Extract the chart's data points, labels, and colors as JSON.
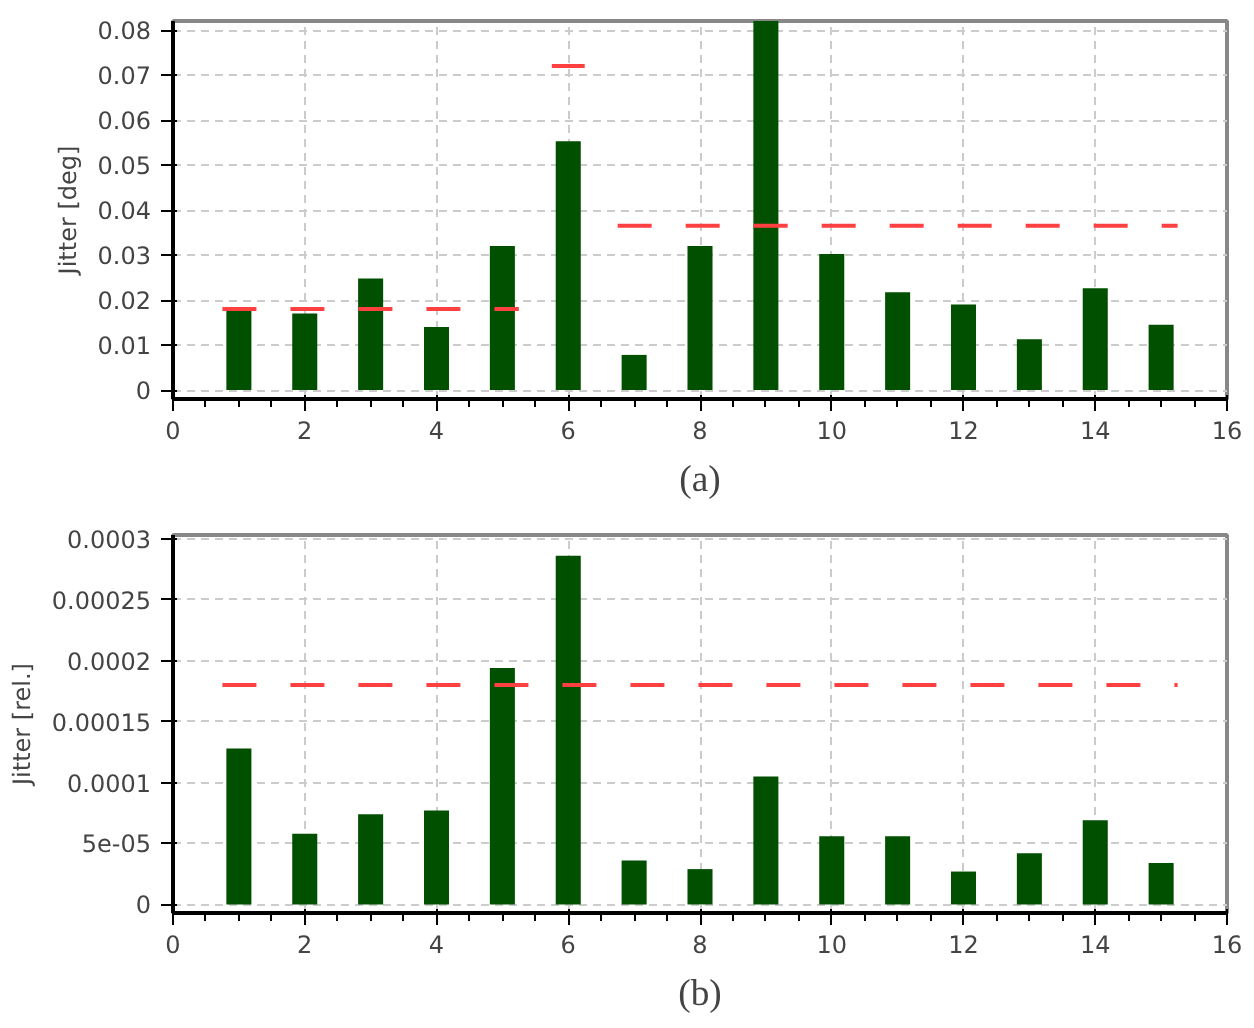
{
  "chart_data": [
    {
      "type": "bar",
      "x": [
        1,
        2,
        3,
        4,
        5,
        6,
        7,
        8,
        9,
        10,
        11,
        12,
        13,
        14,
        15
      ],
      "ylabel": "Jitter [deg]",
      "xlim": [
        0,
        16
      ],
      "xticks": [
        0,
        2,
        4,
        6,
        8,
        10,
        12,
        14,
        16
      ],
      "ylim": [
        -0.002,
        0.082
      ],
      "yticks": [
        0,
        0.01,
        0.02,
        0.03,
        0.04,
        0.05,
        0.06,
        0.07,
        0.08
      ],
      "grid": true,
      "annotations": [
        "(a)"
      ],
      "series": [
        {
          "color": "#005000",
          "values": [
            0.018,
            0.017,
            0.0248,
            0.014,
            0.032,
            0.0553,
            0.0078,
            0.032,
            0.082,
            0.0302,
            0.0217,
            0.019,
            0.0113,
            0.0226,
            0.0145
          ]
        },
        {
          "type": "line",
          "line_style": "dashed",
          "color": "#ff4040",
          "x": [
            0.75,
            5.25,
            5.5,
            5.75,
            6.25,
            6.5,
            6.75,
            15.25
          ],
          "values": [
            0.018,
            0.018,
            null,
            0.072,
            0.072,
            null,
            0.0365,
            0.0365
          ]
        }
      ]
    },
    {
      "type": "bar",
      "x": [
        1,
        2,
        3,
        4,
        5,
        6,
        7,
        8,
        9,
        10,
        11,
        12,
        13,
        14,
        15
      ],
      "ylabel": "Jitter [rel.]",
      "xlim": [
        0,
        16
      ],
      "xticks": [
        0,
        2,
        4,
        6,
        8,
        10,
        12,
        14,
        16
      ],
      "ylim": [
        -7e-06,
        0.000303
      ],
      "yticks": [
        0,
        {
          "value": 5e-05,
          "label": "5e-05"
        },
        0.0001,
        0.00015,
        0.0002,
        0.00025,
        0.0003
      ],
      "grid": true,
      "annotations": [
        "(b)"
      ],
      "series": [
        {
          "color": "#005000",
          "values": [
            0.000128,
            5.8e-05,
            7.4e-05,
            7.7e-05,
            0.000194,
            0.000286,
            3.6e-05,
            2.9e-05,
            0.000105,
            5.6e-05,
            5.6e-05,
            2.7e-05,
            4.2e-05,
            6.9e-05,
            3.4e-05
          ]
        },
        {
          "type": "line",
          "line_style": "dashed",
          "color": "#ff4040",
          "x": [
            0.75,
            15.25
          ],
          "values": [
            0.00018,
            0.00018
          ]
        }
      ]
    }
  ]
}
